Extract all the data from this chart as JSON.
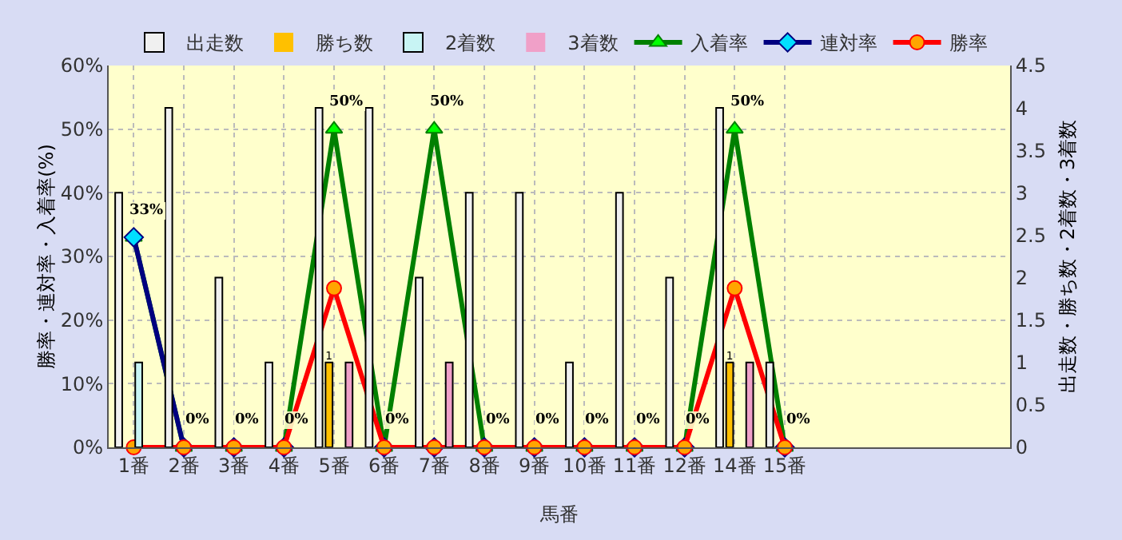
{
  "chart_data": {
    "type": "bar",
    "xlabel": "馬番",
    "ylabel": "勝率・連対率・入着率(%)",
    "y2label": "出走数・勝ち数・2着数・3着数",
    "categories": [
      "1番",
      "2番",
      "3番",
      "4番",
      "5番",
      "6番",
      "7番",
      "8番",
      "9番",
      "10番",
      "11番",
      "12番",
      "14番",
      "15番",
      null,
      null,
      null,
      null
    ],
    "series": [
      {
        "name": "出走数",
        "axis": "y2",
        "color": "#f0f0f0",
        "values": [
          3,
          4,
          2,
          1,
          4,
          4,
          2,
          3,
          3,
          1,
          3,
          2,
          4,
          1,
          null,
          null,
          null,
          null
        ]
      },
      {
        "name": "勝ち数",
        "axis": "y2",
        "color": "#ffc000",
        "values": [
          0,
          0,
          0,
          0,
          1,
          0,
          0,
          0,
          0,
          0,
          0,
          0,
          1,
          0,
          null,
          null,
          null,
          null
        ],
        "value_labels": [
          null,
          null,
          null,
          null,
          "1",
          null,
          null,
          null,
          null,
          null,
          null,
          null,
          "1",
          null,
          null,
          null,
          null,
          null
        ]
      },
      {
        "name": "2着数",
        "axis": "y2",
        "color": "#c8f4f4",
        "values": [
          1,
          0,
          0,
          0,
          0,
          0,
          0,
          0,
          0,
          0,
          0,
          0,
          0,
          0,
          null,
          null,
          null,
          null
        ]
      },
      {
        "name": "3着数",
        "axis": "y2",
        "color": "#f0a0c8",
        "values": [
          0,
          0,
          0,
          0,
          1,
          0,
          1,
          0,
          0,
          0,
          0,
          0,
          1,
          0,
          null,
          null,
          null,
          null
        ]
      },
      {
        "name": "入着率",
        "type": "line",
        "color": "#008000",
        "marker": "triangle",
        "values": [
          33,
          0,
          0,
          0,
          50,
          0,
          50,
          0,
          0,
          0,
          0,
          0,
          50,
          0,
          null,
          null,
          null,
          null
        ],
        "value_labels": [
          "33%",
          "0%",
          "0%",
          "0%",
          "50%",
          "0%",
          "50%",
          "0%",
          "0%",
          "0%",
          "0%",
          "0%",
          "50%",
          "0%",
          null,
          null,
          null,
          null
        ]
      },
      {
        "name": "連対率",
        "type": "line",
        "color": "#000080",
        "marker": "diamond",
        "values": [
          33,
          0,
          0,
          0,
          null,
          0,
          0,
          0,
          0,
          0,
          0,
          0,
          null,
          0,
          null,
          null,
          null,
          null
        ]
      },
      {
        "name": "勝率",
        "type": "line",
        "color": "#ff0000",
        "marker": "circle",
        "values": [
          0,
          0,
          0,
          0,
          25,
          0,
          0,
          0,
          0,
          0,
          0,
          0,
          25,
          0,
          null,
          null,
          null,
          null
        ]
      }
    ],
    "ylim": [
      0,
      60
    ],
    "yticks": [
      {
        "value": 0,
        "label": "0%"
      },
      {
        "value": 10,
        "label": "10%"
      },
      {
        "value": 20,
        "label": "20%"
      },
      {
        "value": 30,
        "label": "30%"
      },
      {
        "value": 40,
        "label": "40%"
      },
      {
        "value": 50,
        "label": "50%"
      },
      {
        "value": 60,
        "label": "60%"
      }
    ],
    "y2lim": [
      0,
      4.5
    ],
    "y2ticks": [
      0,
      0.5,
      1,
      1.5,
      2,
      2.5,
      3,
      3.5,
      4,
      4.5
    ],
    "grid": true,
    "legend": "top",
    "line_style": "solid"
  }
}
